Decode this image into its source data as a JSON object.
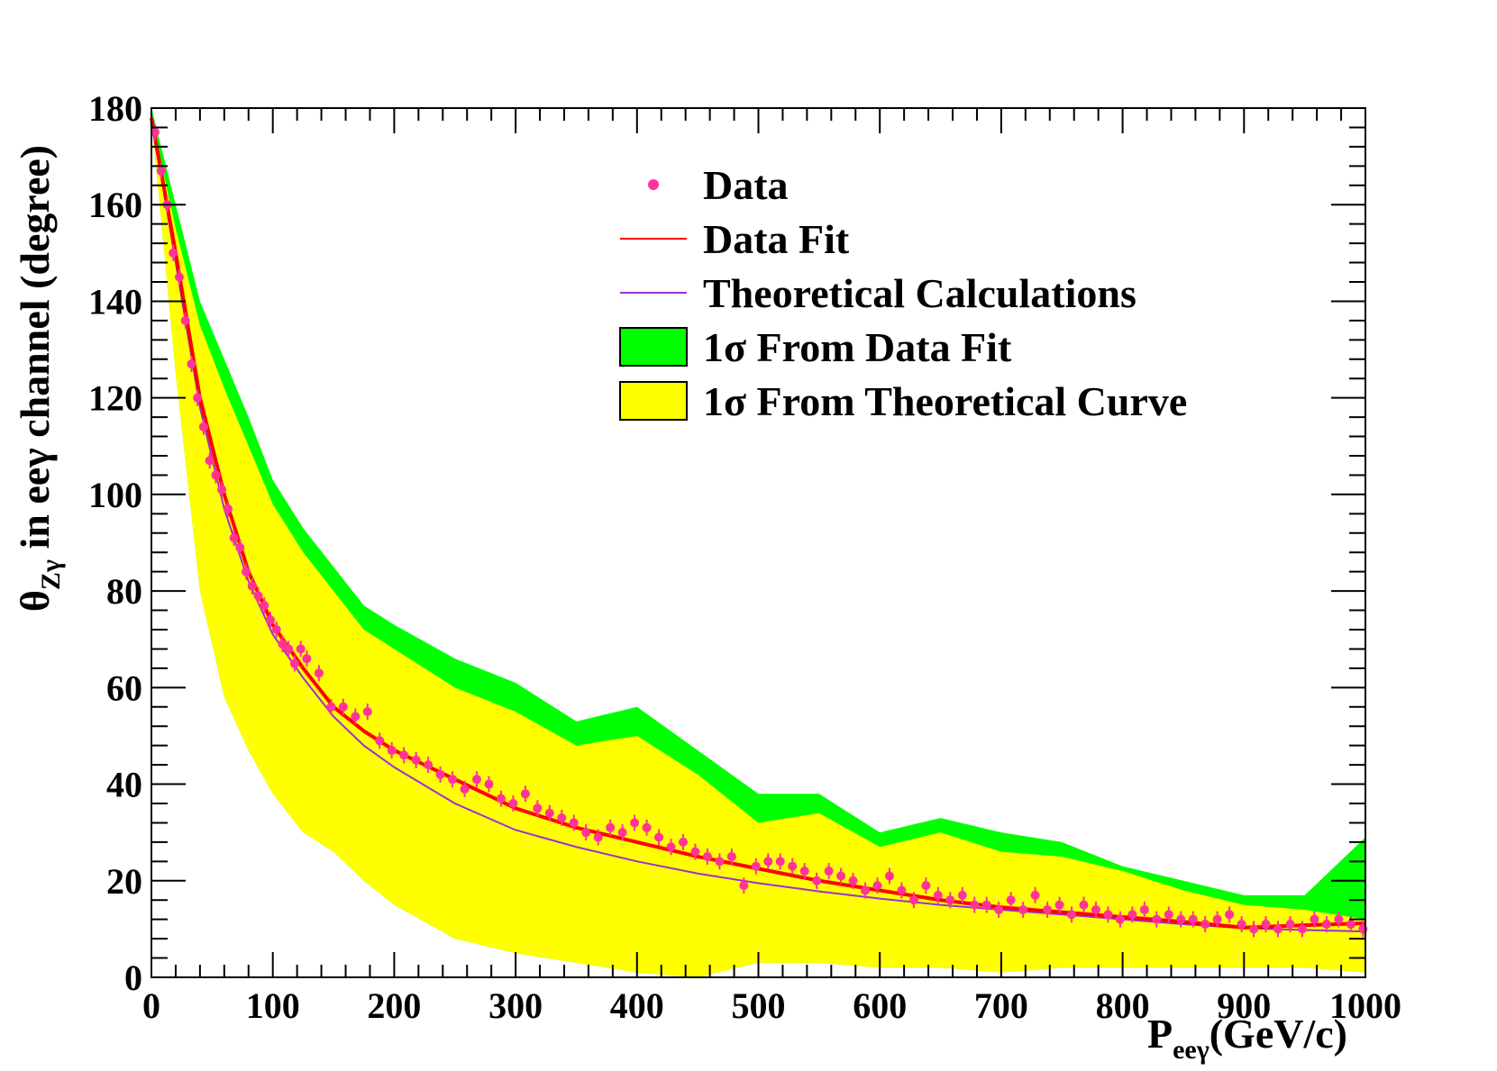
{
  "chart_data": {
    "type": "scatter",
    "xlabel": "P",
    "xlabel_sub": "eeγ",
    "xlabel_unit": "(GeV/c)",
    "ylabel_symbol": "θ",
    "ylabel_sub": "Zγ",
    "ylabel_rest": " in eeγ channel (degree)",
    "xlim": [
      0,
      1000
    ],
    "ylim": [
      0,
      180
    ],
    "xticks": [
      0,
      100,
      200,
      300,
      400,
      500,
      600,
      700,
      800,
      900,
      1000
    ],
    "yticks": [
      0,
      20,
      40,
      60,
      80,
      100,
      120,
      140,
      160,
      180
    ],
    "legend_position": "top-right",
    "series": [
      {
        "name": "Data",
        "kind": "points",
        "color": "#ff3399"
      },
      {
        "name": "Data Fit",
        "kind": "line",
        "color": "#ff0000"
      },
      {
        "name": "Theoretical Calculations",
        "kind": "line",
        "color": "#9933cc"
      },
      {
        "name": "1σ From Data Fit",
        "kind": "band",
        "color": "#00ff00"
      },
      {
        "name": "1σ From Theoretical Curve",
        "kind": "band",
        "color": "#ffff00"
      }
    ],
    "fit_curve": {
      "x": [
        0,
        20,
        40,
        60,
        80,
        100,
        125,
        150,
        175,
        200,
        250,
        300,
        350,
        400,
        450,
        500,
        550,
        600,
        650,
        700,
        750,
        800,
        850,
        900,
        950,
        1000
      ],
      "y": [
        178,
        150,
        120,
        100,
        84,
        73,
        64,
        56,
        51,
        47,
        41,
        35,
        31,
        28,
        25,
        22.5,
        20,
        18,
        16,
        14.5,
        13.5,
        12.5,
        11.5,
        10.3,
        10.8,
        11.2
      ]
    },
    "theory_curve": {
      "x": [
        0,
        20,
        40,
        60,
        80,
        100,
        125,
        150,
        175,
        200,
        250,
        300,
        350,
        400,
        450,
        500,
        550,
        600,
        650,
        700,
        750,
        800,
        850,
        900,
        950,
        1000
      ],
      "y": [
        178,
        148,
        118,
        97,
        82,
        71,
        62,
        54,
        48,
        43.5,
        36,
        30.5,
        27,
        24,
        21.5,
        19.5,
        17.8,
        16.3,
        15,
        14,
        13,
        12,
        11,
        10.2,
        9.8,
        9.5
      ]
    },
    "theory_band": {
      "x": [
        0,
        20,
        40,
        60,
        80,
        100,
        125,
        150,
        175,
        200,
        250,
        300,
        350,
        400,
        450,
        500,
        550,
        600,
        650,
        700,
        750,
        800,
        850,
        900,
        950,
        1000
      ],
      "upper": [
        178,
        155,
        135,
        122,
        110,
        98,
        88,
        80,
        72,
        68,
        60,
        55,
        48,
        50,
        42,
        32,
        34,
        27,
        30,
        26,
        25,
        22,
        18,
        15,
        14,
        12
      ],
      "lower": [
        178,
        125,
        80,
        58,
        47,
        38,
        30,
        26,
        20,
        15,
        8,
        5,
        3,
        1,
        0,
        3,
        3,
        2,
        2,
        1,
        2,
        2,
        2,
        2,
        2,
        1
      ]
    },
    "fit_band_upper": {
      "x": [
        0,
        20,
        40,
        60,
        80,
        100,
        125,
        150,
        175,
        200,
        250,
        300,
        350,
        400,
        450,
        500,
        550,
        600,
        650,
        700,
        750,
        800,
        850,
        900,
        950,
        1000
      ],
      "y": [
        180,
        160,
        140,
        128,
        116,
        103,
        93,
        85,
        77,
        73,
        66,
        61,
        53,
        56,
        47,
        38,
        38,
        30,
        33,
        30,
        28,
        23,
        20,
        17,
        17,
        29
      ]
    },
    "data_points": {
      "x": [
        3,
        8,
        13,
        18,
        23,
        28,
        33,
        38,
        43,
        48,
        53,
        58,
        63,
        68,
        73,
        78,
        83,
        88,
        93,
        98,
        103,
        108,
        113,
        118,
        123,
        128,
        138,
        148,
        158,
        168,
        178,
        188,
        198,
        208,
        218,
        228,
        238,
        248,
        258,
        268,
        278,
        288,
        298,
        308,
        318,
        328,
        338,
        348,
        358,
        368,
        378,
        388,
        398,
        408,
        418,
        428,
        438,
        448,
        458,
        468,
        478,
        488,
        498,
        508,
        518,
        528,
        538,
        548,
        558,
        568,
        578,
        588,
        598,
        608,
        618,
        628,
        638,
        648,
        658,
        668,
        678,
        688,
        698,
        708,
        718,
        728,
        738,
        748,
        758,
        768,
        778,
        788,
        798,
        808,
        818,
        828,
        838,
        848,
        858,
        868,
        878,
        888,
        898,
        908,
        918,
        928,
        938,
        948,
        958,
        968,
        978,
        988,
        998
      ],
      "y": [
        175,
        167,
        160,
        150,
        145,
        136,
        127,
        120,
        114,
        107,
        104,
        101,
        97,
        91,
        89,
        84,
        81,
        79,
        77,
        74,
        72,
        69,
        68,
        65,
        68,
        66,
        63,
        56,
        56,
        54,
        55,
        49,
        47,
        46,
        45,
        44,
        42,
        41,
        39,
        41,
        40,
        37,
        36,
        38,
        35,
        34,
        33,
        32,
        30,
        29,
        31,
        30,
        32,
        31,
        29,
        27,
        28,
        26,
        25,
        24,
        25,
        19,
        23,
        24,
        24,
        23,
        22,
        20,
        22,
        21,
        20,
        18,
        19,
        21,
        18,
        16,
        19,
        17,
        16,
        17,
        15,
        15,
        14,
        16,
        14,
        17,
        14,
        15,
        13,
        15,
        14,
        13,
        12,
        13,
        14,
        12,
        13,
        12,
        12,
        11,
        12,
        13,
        11,
        10,
        11,
        10,
        11,
        10,
        12,
        11,
        12,
        11,
        10
      ]
    }
  },
  "legend": [
    {
      "label": "Data",
      "kind": "points",
      "color": "#ff3399"
    },
    {
      "label": "Data Fit",
      "kind": "line",
      "color": "#ff0000"
    },
    {
      "label": "Theoretical Calculations",
      "kind": "line",
      "color": "#9933cc"
    },
    {
      "label": "1σ From Data Fit",
      "kind": "box",
      "color": "#00ff00"
    },
    {
      "label": "1σ From Theoretical Curve",
      "kind": "box",
      "color": "#ffff00"
    }
  ]
}
